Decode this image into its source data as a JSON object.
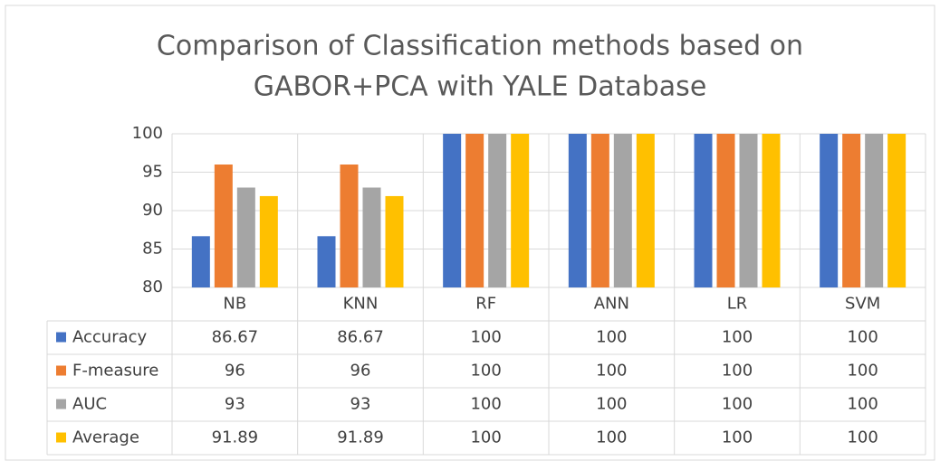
{
  "chart_data": {
    "type": "bar",
    "title": [
      "Comparison of Classification methods based on",
      "GABOR+PCA with YALE Database"
    ],
    "categories": [
      "NB",
      "KNN",
      "RF",
      "ANN",
      "LR",
      "SVM"
    ],
    "series": [
      {
        "name": "Accuracy",
        "color": "#4472c4",
        "values": [
          86.67,
          86.67,
          100,
          100,
          100,
          100
        ]
      },
      {
        "name": "F-measure",
        "color": "#ed7d31",
        "values": [
          96,
          96,
          100,
          100,
          100,
          100
        ]
      },
      {
        "name": "AUC",
        "color": "#a5a5a5",
        "values": [
          93,
          93,
          100,
          100,
          100,
          100
        ]
      },
      {
        "name": "Average",
        "color": "#ffc000",
        "values": [
          91.89,
          91.89,
          100,
          100,
          100,
          100
        ]
      }
    ],
    "ylim": [
      80,
      100
    ],
    "yticks": [
      80,
      85,
      90,
      95,
      100
    ],
    "grid": true,
    "legend": "table"
  }
}
